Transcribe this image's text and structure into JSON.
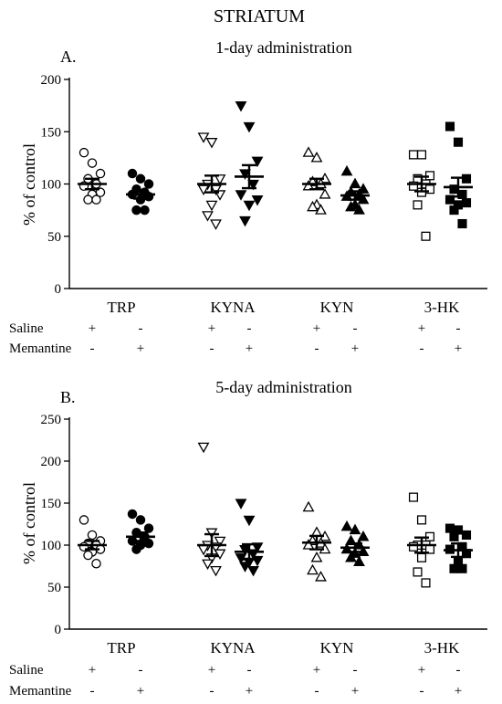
{
  "figure": {
    "title": "STRIATUM",
    "row_labels": [
      "Saline",
      "Memantine"
    ]
  },
  "chart_data": [
    {
      "type": "scatter",
      "panel_label": "A.",
      "title": "1-day administration",
      "ylabel": "% of control",
      "ylim": [
        0,
        200
      ],
      "yticks": [
        0,
        50,
        100,
        150,
        200
      ],
      "categories": [
        "TRP",
        "KYNA",
        "KYN",
        "3-HK"
      ],
      "treatment_signs": {
        "Saline": [
          "+",
          "-"
        ],
        "Memantine": [
          "-",
          "+"
        ]
      },
      "series": [
        {
          "name": "Saline",
          "marker": "circle",
          "fill": "open",
          "group": "TRP",
          "values": [
            130,
            120,
            110,
            105,
            100,
            98,
            92,
            90,
            85,
            85
          ],
          "mean": 100,
          "sem": 5
        },
        {
          "name": "Memantine",
          "marker": "circle",
          "fill": "filled",
          "group": "TRP",
          "values": [
            110,
            105,
            100,
            95,
            92,
            90,
            88,
            85,
            75,
            75
          ],
          "mean": 90,
          "sem": 4
        },
        {
          "name": "Saline",
          "marker": "triangle-down",
          "fill": "open",
          "group": "KYNA",
          "values": [
            145,
            140,
            105,
            100,
            95,
            95,
            90,
            80,
            70,
            62
          ],
          "mean": 100,
          "sem": 8
        },
        {
          "name": "Memantine",
          "marker": "triangle-down",
          "fill": "filled",
          "group": "KYNA",
          "values": [
            175,
            155,
            122,
            110,
            100,
            90,
            85,
            80,
            65
          ],
          "mean": 107,
          "sem": 11
        },
        {
          "name": "Saline",
          "marker": "triangle-up",
          "fill": "open",
          "group": "KYN",
          "values": [
            130,
            125,
            105,
            102,
            100,
            98,
            90,
            80,
            78,
            75
          ],
          "mean": 100,
          "sem": 5
        },
        {
          "name": "Memantine",
          "marker": "triangle-up",
          "fill": "filled",
          "group": "KYN",
          "values": [
            112,
            100,
            95,
            92,
            90,
            88,
            85,
            80,
            78,
            75
          ],
          "mean": 89,
          "sem": 4
        },
        {
          "name": "Saline",
          "marker": "square",
          "fill": "open",
          "group": "3-HK",
          "values": [
            128,
            128,
            108,
            105,
            100,
            98,
            95,
            92,
            80,
            50
          ],
          "mean": 100,
          "sem": 7
        },
        {
          "name": "Memantine",
          "marker": "square",
          "fill": "filled",
          "group": "3-HK",
          "values": [
            155,
            140,
            105,
            95,
            90,
            85,
            82,
            80,
            75,
            62
          ],
          "mean": 97,
          "sem": 9
        }
      ]
    },
    {
      "type": "scatter",
      "panel_label": "B.",
      "title": "5-day administration",
      "ylabel": "% of control",
      "ylim": [
        0,
        250
      ],
      "yticks": [
        0,
        50,
        100,
        150,
        200,
        250
      ],
      "categories": [
        "TRP",
        "KYNA",
        "KYN",
        "3-HK"
      ],
      "treatment_signs": {
        "Saline": [
          "+",
          "-"
        ],
        "Memantine": [
          "-",
          "+"
        ]
      },
      "series": [
        {
          "name": "Saline",
          "marker": "circle",
          "fill": "open",
          "group": "TRP",
          "values": [
            130,
            112,
            105,
            102,
            100,
            98,
            95,
            92,
            88,
            78
          ],
          "mean": 100,
          "sem": 5
        },
        {
          "name": "Memantine",
          "marker": "circle",
          "fill": "filled",
          "group": "TRP",
          "values": [
            137,
            130,
            120,
            115,
            110,
            105,
            102,
            100,
            95
          ],
          "mean": 110,
          "sem": 5
        },
        {
          "name": "Saline",
          "marker": "triangle-down",
          "fill": "open",
          "group": "KYNA",
          "values": [
            217,
            115,
            105,
            100,
            98,
            95,
            90,
            85,
            78,
            70
          ],
          "mean": 100,
          "sem": 13
        },
        {
          "name": "Memantine",
          "marker": "triangle-down",
          "fill": "filled",
          "group": "KYNA",
          "values": [
            150,
            130,
            98,
            95,
            90,
            85,
            82,
            80,
            75,
            70
          ],
          "mean": 92,
          "sem": 9
        },
        {
          "name": "Saline",
          "marker": "triangle-up",
          "fill": "open",
          "group": "KYN",
          "values": [
            145,
            115,
            110,
            105,
            102,
            100,
            95,
            85,
            70,
            62
          ],
          "mean": 103,
          "sem": 8
        },
        {
          "name": "Memantine",
          "marker": "triangle-up",
          "fill": "filled",
          "group": "KYN",
          "values": [
            122,
            118,
            110,
            105,
            100,
            95,
            92,
            90,
            85,
            80
          ],
          "mean": 97,
          "sem": 5
        },
        {
          "name": "Saline",
          "marker": "square",
          "fill": "open",
          "group": "3-HK",
          "values": [
            157,
            130,
            110,
            100,
            100,
            98,
            95,
            85,
            68,
            55
          ],
          "mean": 100,
          "sem": 9
        },
        {
          "name": "Memantine",
          "marker": "square",
          "fill": "filled",
          "group": "3-HK",
          "values": [
            120,
            118,
            112,
            110,
            98,
            95,
            90,
            80,
            72,
            72
          ],
          "mean": 94,
          "sem": 8
        }
      ]
    }
  ]
}
